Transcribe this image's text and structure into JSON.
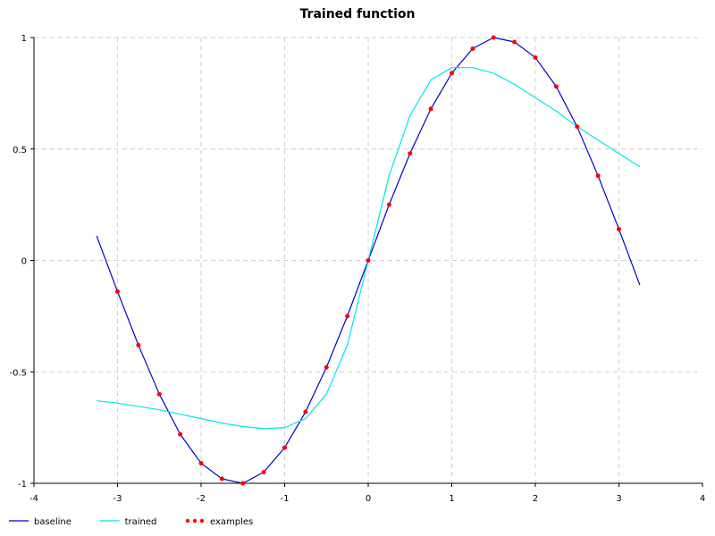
{
  "chart_data": {
    "type": "line",
    "title": "Trained function",
    "xlabel": "",
    "ylabel": "",
    "xlim": [
      -4,
      4
    ],
    "ylim": [
      -1,
      1
    ],
    "x_ticks": [
      "-4",
      "-3",
      "-2",
      "-1",
      "0",
      "1",
      "2",
      "3",
      "4"
    ],
    "y_ticks": [
      "-1",
      "-0.5",
      "0",
      "0.5",
      "1"
    ],
    "grid": true,
    "legend_placement": "bottom-left",
    "series": [
      {
        "name": "baseline",
        "style": "line",
        "color": "#0000cc",
        "x": [
          -3.25,
          -3.0,
          -2.75,
          -2.5,
          -2.25,
          -2.0,
          -1.75,
          -1.5,
          -1.25,
          -1.0,
          -0.75,
          -0.5,
          -0.25,
          0.0,
          0.25,
          0.5,
          0.75,
          1.0,
          1.25,
          1.5,
          1.75,
          2.0,
          2.25,
          2.5,
          2.75,
          3.0,
          3.25
        ],
        "y": [
          0.11,
          -0.14,
          -0.38,
          -0.6,
          -0.78,
          -0.91,
          -0.98,
          -1.0,
          -0.95,
          -0.84,
          -0.68,
          -0.48,
          -0.25,
          0.0,
          0.25,
          0.48,
          0.68,
          0.84,
          0.95,
          1.0,
          0.98,
          0.91,
          0.78,
          0.6,
          0.38,
          0.14,
          -0.11
        ]
      },
      {
        "name": "trained",
        "style": "line",
        "color": "#00e5ee",
        "x": [
          -3.25,
          -3.0,
          -2.75,
          -2.5,
          -2.25,
          -2.0,
          -1.75,
          -1.5,
          -1.25,
          -1.0,
          -0.75,
          -0.5,
          -0.25,
          0.0,
          0.25,
          0.5,
          0.75,
          1.0,
          1.25,
          1.5,
          1.75,
          2.0,
          2.25,
          2.5,
          2.75,
          3.0,
          3.25
        ],
        "y": [
          -0.63,
          -0.64,
          -0.655,
          -0.67,
          -0.69,
          -0.71,
          -0.73,
          -0.745,
          -0.755,
          -0.75,
          -0.71,
          -0.6,
          -0.38,
          0.0,
          0.38,
          0.65,
          0.81,
          0.865,
          0.865,
          0.84,
          0.79,
          0.73,
          0.67,
          0.6,
          0.54,
          0.48,
          0.42
        ]
      },
      {
        "name": "examples",
        "style": "points",
        "color": "#ff0000",
        "x": [
          -3.0,
          -2.75,
          -2.5,
          -2.25,
          -2.0,
          -1.75,
          -1.5,
          -1.25,
          -1.0,
          -0.75,
          -0.5,
          -0.25,
          0.0,
          0.25,
          0.5,
          0.75,
          1.0,
          1.25,
          1.5,
          1.75,
          2.0,
          2.25,
          2.5,
          2.75,
          3.0
        ],
        "y": [
          -0.14,
          -0.38,
          -0.6,
          -0.78,
          -0.91,
          -0.98,
          -1.0,
          -0.95,
          -0.84,
          -0.68,
          -0.48,
          -0.25,
          0.0,
          0.25,
          0.48,
          0.68,
          0.84,
          0.95,
          1.0,
          0.98,
          0.91,
          0.78,
          0.6,
          0.38,
          0.14
        ]
      }
    ]
  }
}
